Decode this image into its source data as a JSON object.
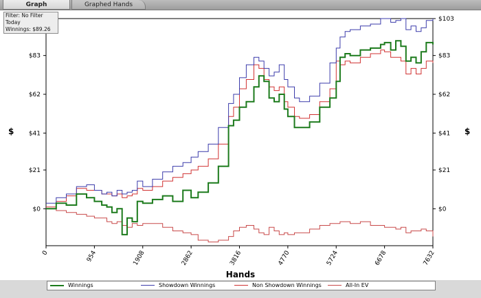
{
  "tabs": [
    {
      "label": "Graph",
      "active": true
    },
    {
      "label": "Graphed Hands",
      "active": false
    }
  ],
  "filter_info": {
    "line1": "Filter: No Filter",
    "line2": "Today",
    "line3": "Winnings: $89.26"
  },
  "colors": {
    "winnings": "#1b7a1b",
    "showdown": "#3a3aaa",
    "non_showdown": "#d03030",
    "allin_ev": "#c84848"
  },
  "chart_data": {
    "type": "line",
    "title": "",
    "xlabel": "Hands",
    "ylabel": "$",
    "xlim": [
      0,
      7632
    ],
    "ylim": [
      -20,
      103
    ],
    "x_ticks": [
      "0",
      "954",
      "1908",
      "2862",
      "3816",
      "4770",
      "5724",
      "6678",
      "7632"
    ],
    "y_ticks": [
      "$0",
      "$21",
      "$41",
      "$62",
      "$83",
      "$103"
    ],
    "grid": true,
    "legend_position": "bottom",
    "series": [
      {
        "name": "Winnings",
        "x": [
          0,
          200,
          400,
          600,
          800,
          954,
          1100,
          1200,
          1300,
          1400,
          1500,
          1600,
          1700,
          1800,
          1908,
          2100,
          2300,
          2500,
          2700,
          2862,
          3000,
          3200,
          3400,
          3600,
          3700,
          3816,
          3950,
          4100,
          4200,
          4300,
          4400,
          4500,
          4600,
          4700,
          4770,
          4900,
          5000,
          5200,
          5400,
          5600,
          5724,
          5800,
          5900,
          6000,
          6200,
          6400,
          6600,
          6678,
          6800,
          6900,
          7000,
          7100,
          7200,
          7300,
          7400,
          7500,
          7632
        ],
        "y": [
          0,
          3,
          2,
          8,
          6,
          4,
          2,
          1,
          -2,
          0,
          -14,
          -5,
          -7,
          4,
          3,
          5,
          7,
          4,
          10,
          6,
          9,
          14,
          23,
          45,
          48,
          55,
          58,
          66,
          72,
          69,
          60,
          58,
          62,
          54,
          50,
          44,
          44,
          47,
          55,
          60,
          69,
          82,
          84,
          83,
          86,
          87,
          89,
          90,
          86,
          91,
          88,
          80,
          82,
          79,
          85,
          90,
          89
        ]
      },
      {
        "name": "Showdown Winnings",
        "x": [
          0,
          200,
          400,
          600,
          800,
          954,
          1100,
          1200,
          1300,
          1400,
          1500,
          1600,
          1700,
          1800,
          1908,
          2100,
          2300,
          2500,
          2700,
          2862,
          3000,
          3200,
          3400,
          3600,
          3700,
          3816,
          3950,
          4100,
          4200,
          4300,
          4400,
          4500,
          4600,
          4700,
          4770,
          4900,
          5000,
          5200,
          5400,
          5600,
          5724,
          5800,
          5900,
          6000,
          6200,
          6400,
          6600,
          6678,
          6800,
          6900,
          7000,
          7100,
          7200,
          7300,
          7400,
          7500,
          7632
        ],
        "y": [
          3,
          6,
          8,
          12,
          13,
          10,
          8,
          9,
          7,
          10,
          8,
          9,
          10,
          15,
          12,
          16,
          20,
          23,
          25,
          28,
          31,
          35,
          44,
          57,
          62,
          71,
          78,
          82,
          80,
          76,
          72,
          74,
          78,
          70,
          66,
          60,
          58,
          61,
          68,
          79,
          87,
          93,
          96,
          97,
          99,
          100,
          103,
          103,
          101,
          102,
          103,
          97,
          99,
          96,
          98,
          102,
          103
        ]
      },
      {
        "name": "Non Showdown Winnings",
        "x": [
          0,
          200,
          400,
          600,
          800,
          954,
          1100,
          1200,
          1300,
          1400,
          1500,
          1600,
          1700,
          1800,
          1908,
          2100,
          2300,
          2500,
          2700,
          2862,
          3000,
          3200,
          3400,
          3600,
          3700,
          3816,
          3950,
          4100,
          4200,
          4300,
          4400,
          4500,
          4600,
          4700,
          4770,
          4900,
          5000,
          5200,
          5400,
          5600,
          5724,
          5800,
          5900,
          6000,
          6200,
          6400,
          6600,
          6678,
          6800,
          6900,
          7000,
          7100,
          7200,
          7300,
          7400,
          7500,
          7632
        ],
        "y": [
          1,
          4,
          7,
          11,
          10,
          10,
          8,
          8,
          7,
          8,
          6,
          7,
          8,
          11,
          10,
          12,
          15,
          17,
          19,
          21,
          23,
          27,
          35,
          50,
          55,
          65,
          70,
          78,
          76,
          70,
          66,
          64,
          66,
          58,
          55,
          50,
          49,
          51,
          58,
          65,
          80,
          78,
          80,
          79,
          82,
          84,
          86,
          85,
          82,
          82,
          80,
          73,
          76,
          73,
          76,
          80,
          79
        ]
      },
      {
        "name": "All-In EV",
        "x": [
          0,
          200,
          400,
          600,
          800,
          954,
          1100,
          1200,
          1300,
          1400,
          1500,
          1600,
          1700,
          1800,
          1908,
          2100,
          2300,
          2500,
          2700,
          2862,
          3000,
          3200,
          3400,
          3600,
          3700,
          3816,
          3950,
          4100,
          4200,
          4300,
          4400,
          4500,
          4600,
          4700,
          4770,
          4900,
          5000,
          5200,
          5400,
          5600,
          5724,
          5800,
          5900,
          6000,
          6200,
          6400,
          6600,
          6678,
          6800,
          6900,
          7000,
          7100,
          7200,
          7300,
          7400,
          7500,
          7632
        ],
        "y": [
          0,
          -1,
          -2,
          -3,
          -4,
          -5,
          -5,
          -7,
          -8,
          -7,
          -9,
          -10,
          -8,
          -9,
          -8,
          -8,
          -10,
          -12,
          -13,
          -14,
          -17,
          -18,
          -17,
          -15,
          -12,
          -10,
          -9,
          -11,
          -13,
          -14,
          -10,
          -12,
          -14,
          -13,
          -14,
          -13,
          -13,
          -11,
          -9,
          -8,
          -8,
          -7,
          -7,
          -8,
          -7,
          -9,
          -9,
          -10,
          -10,
          -11,
          -10,
          -13,
          -12,
          -12,
          -11,
          -12,
          -15
        ]
      }
    ]
  }
}
